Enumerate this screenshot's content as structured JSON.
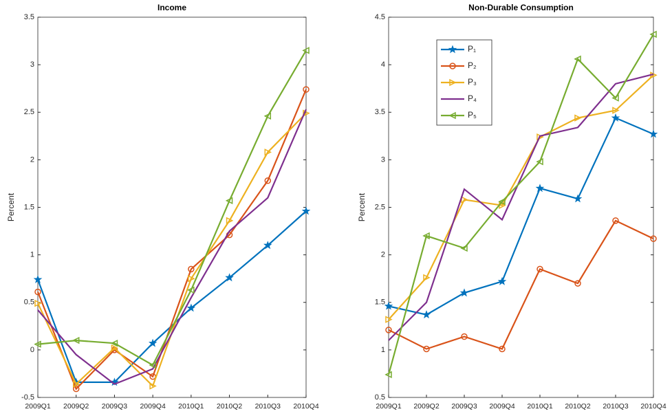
{
  "chart_data": [
    {
      "type": "line",
      "title": "Income",
      "y_label": "Percent",
      "categories": [
        "2009Q1",
        "2009Q2",
        "2009Q3",
        "2009Q4",
        "2010Q1",
        "2010Q2",
        "2010Q3",
        "2010Q4"
      ],
      "ylim": [
        -0.5,
        3.5
      ],
      "yticks": [
        -0.5,
        0,
        0.5,
        1,
        1.5,
        2,
        2.5,
        3,
        3.5
      ],
      "grid": false,
      "series": [
        {
          "name": "P₁",
          "color": "#0072BD",
          "marker": "star",
          "values": [
            0.74,
            -0.34,
            -0.34,
            0.07,
            0.44,
            0.76,
            1.1,
            1.46
          ]
        },
        {
          "name": "P₂",
          "color": "#D95319",
          "marker": "circle",
          "values": [
            0.61,
            -0.41,
            0.0,
            -0.28,
            0.85,
            1.21,
            1.78,
            2.74
          ]
        },
        {
          "name": "P₃",
          "color": "#EDB120",
          "marker": "triangle-right",
          "values": [
            0.49,
            -0.36,
            0.02,
            -0.38,
            0.75,
            1.36,
            2.08,
            2.49
          ]
        },
        {
          "name": "P₄",
          "color": "#7E2F8E",
          "marker": "none",
          "values": [
            0.42,
            -0.05,
            -0.36,
            -0.2,
            0.55,
            1.25,
            1.6,
            2.53
          ]
        },
        {
          "name": "P₅",
          "color": "#77AC30",
          "marker": "triangle-left",
          "values": [
            0.06,
            0.1,
            0.07,
            -0.16,
            0.63,
            1.57,
            2.46,
            3.15
          ]
        }
      ]
    },
    {
      "type": "line",
      "title": "Non-Durable Consumption",
      "y_label": "Percent",
      "categories": [
        "2009Q1",
        "2009Q2",
        "2009Q3",
        "2009Q4",
        "2010Q1",
        "2010Q2",
        "2010Q3",
        "2010Q4"
      ],
      "ylim": [
        0.5,
        4.5
      ],
      "yticks": [
        0.5,
        1,
        1.5,
        2,
        2.5,
        3,
        3.5,
        4,
        4.5
      ],
      "grid": false,
      "legend": "upper left",
      "series": [
        {
          "name": "P₁",
          "color": "#0072BD",
          "marker": "star",
          "values": [
            1.46,
            1.37,
            1.6,
            1.72,
            2.7,
            2.59,
            3.44,
            3.27
          ]
        },
        {
          "name": "P₂",
          "color": "#D95319",
          "marker": "circle",
          "values": [
            1.21,
            1.01,
            1.14,
            1.01,
            1.85,
            1.7,
            2.36,
            2.17
          ]
        },
        {
          "name": "P₃",
          "color": "#EDB120",
          "marker": "triangle-right",
          "values": [
            1.32,
            1.76,
            2.58,
            2.52,
            3.24,
            3.44,
            3.52,
            3.89
          ]
        },
        {
          "name": "P₄",
          "color": "#7E2F8E",
          "marker": "none",
          "values": [
            1.1,
            1.5,
            2.69,
            2.37,
            3.25,
            3.34,
            3.8,
            3.9
          ]
        },
        {
          "name": "P₅",
          "color": "#77AC30",
          "marker": "triangle-left",
          "values": [
            0.74,
            2.2,
            2.07,
            2.56,
            2.98,
            4.06,
            3.65,
            4.32
          ]
        }
      ]
    }
  ]
}
